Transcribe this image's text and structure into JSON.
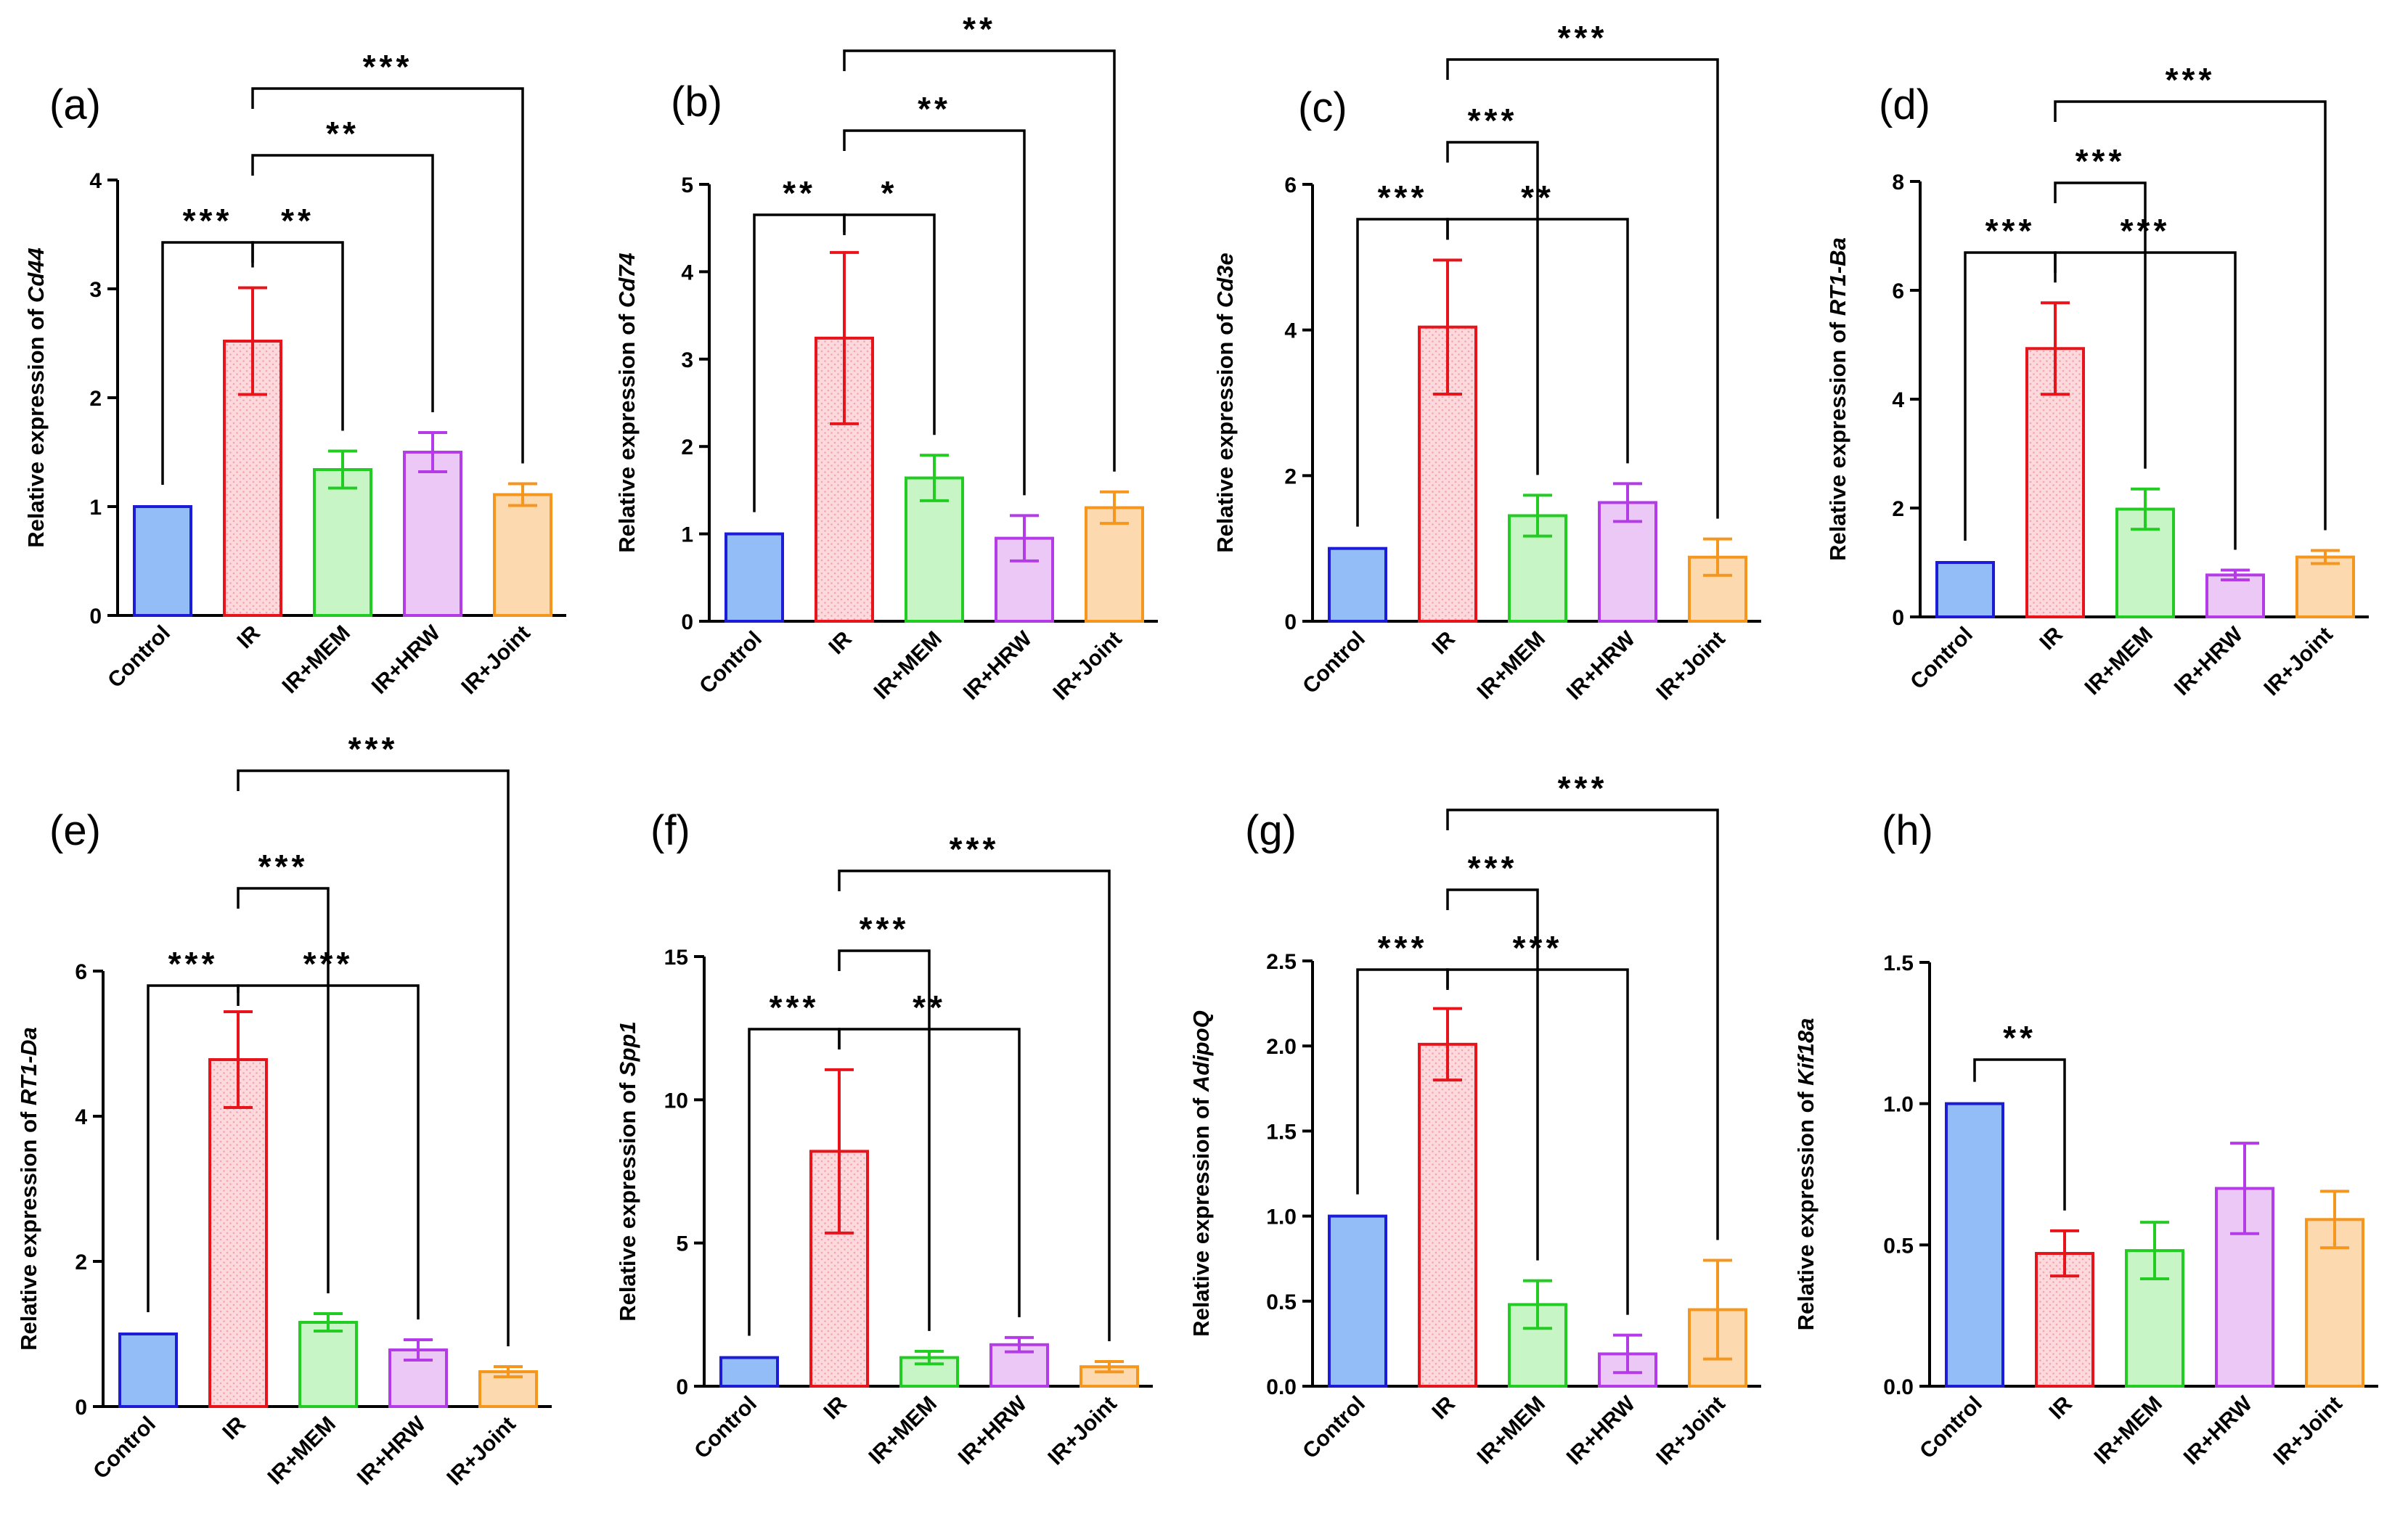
{
  "figure": {
    "groups": [
      "Control",
      "IR",
      "IR+MEM",
      "IR+HRW",
      "IR+Joint"
    ],
    "colors": {
      "stroke": [
        "#1c1cd6",
        "#e8141c",
        "#22cc22",
        "#b43ce6",
        "#f5961e"
      ],
      "fill": [
        "#93bdf7",
        "#fcd9dc",
        "#c8f5c6",
        "#ecc8f7",
        "#fdd9b0"
      ]
    }
  },
  "chart_data": [
    {
      "type": "bar",
      "panel": "(a)",
      "ylabel_prefix": "Relative expression of ",
      "gene": "Cd44",
      "ylim": [
        0,
        4
      ],
      "yticks": [
        "0",
        "1",
        "2",
        "3",
        "4"
      ],
      "categories": [
        "Control",
        "IR",
        "IR+MEM",
        "IR+HRW",
        "IR+Joint"
      ],
      "values": [
        1.0,
        2.52,
        1.34,
        1.5,
        1.11
      ],
      "errors": [
        0,
        0.49,
        0.17,
        0.18,
        0.1
      ],
      "significance": [
        {
          "from": 0,
          "to": 1,
          "label": "***"
        },
        {
          "from": 1,
          "to": 2,
          "label": "**"
        },
        {
          "from": 1,
          "to": 3,
          "label": "**"
        },
        {
          "from": 1,
          "to": 4,
          "label": "***"
        }
      ]
    },
    {
      "type": "bar",
      "panel": "(b)",
      "ylabel_prefix": "Relative expression of ",
      "gene": "Cd74",
      "ylim": [
        0,
        5
      ],
      "yticks": [
        "0",
        "1",
        "2",
        "3",
        "4",
        "5"
      ],
      "categories": [
        "Control",
        "IR",
        "IR+MEM",
        "IR+HRW",
        "IR+Joint"
      ],
      "values": [
        1.0,
        3.24,
        1.64,
        0.95,
        1.3
      ],
      "errors": [
        0,
        0.98,
        0.26,
        0.26,
        0.18
      ],
      "significance": [
        {
          "from": 0,
          "to": 1,
          "label": "**"
        },
        {
          "from": 1,
          "to": 2,
          "label": "*"
        },
        {
          "from": 1,
          "to": 3,
          "label": "**"
        },
        {
          "from": 1,
          "to": 4,
          "label": "**"
        }
      ]
    },
    {
      "type": "bar",
      "panel": "(c)",
      "ylabel_prefix": "Relative expression of ",
      "gene": "Cd3e",
      "ylim": [
        0,
        6
      ],
      "yticks": [
        "0",
        "2",
        "4",
        "6"
      ],
      "categories": [
        "Control",
        "IR",
        "IR+MEM",
        "IR+HRW",
        "IR+Joint"
      ],
      "values": [
        1.0,
        4.04,
        1.45,
        1.63,
        0.88
      ],
      "errors": [
        0,
        0.92,
        0.28,
        0.26,
        0.25
      ],
      "significance": [
        {
          "from": 0,
          "to": 1,
          "label": "***"
        },
        {
          "from": 1,
          "to": 2,
          "label": "***"
        },
        {
          "from": 1,
          "to": 3,
          "label": "**"
        },
        {
          "from": 1,
          "to": 4,
          "label": "***"
        }
      ]
    },
    {
      "type": "bar",
      "panel": "(d)",
      "ylabel_prefix": "Relative expression of ",
      "gene": "RT1-Ba",
      "ylim": [
        0,
        8
      ],
      "yticks": [
        "0",
        "2",
        "4",
        "6",
        "8"
      ],
      "categories": [
        "Control",
        "IR",
        "IR+MEM",
        "IR+HRW",
        "IR+Joint"
      ],
      "values": [
        1.0,
        4.93,
        1.98,
        0.77,
        1.1
      ],
      "errors": [
        0,
        0.84,
        0.37,
        0.09,
        0.12
      ],
      "significance": [
        {
          "from": 0,
          "to": 1,
          "label": "***"
        },
        {
          "from": 1,
          "to": 2,
          "label": "***"
        },
        {
          "from": 1,
          "to": 3,
          "label": "***"
        },
        {
          "from": 1,
          "to": 4,
          "label": "***"
        }
      ]
    },
    {
      "type": "bar",
      "panel": "(e)",
      "ylabel_prefix": "Relative expression of ",
      "gene": "RT1-Da",
      "ylim": [
        0,
        6
      ],
      "yticks": [
        "0",
        "2",
        "4",
        "6"
      ],
      "categories": [
        "Control",
        "IR",
        "IR+MEM",
        "IR+HRW",
        "IR+Joint"
      ],
      "values": [
        1.0,
        4.78,
        1.16,
        0.78,
        0.48
      ],
      "errors": [
        0,
        0.66,
        0.12,
        0.14,
        0.07
      ],
      "significance": [
        {
          "from": 0,
          "to": 1,
          "label": "***"
        },
        {
          "from": 1,
          "to": 2,
          "label": "***"
        },
        {
          "from": 1,
          "to": 3,
          "label": "***"
        },
        {
          "from": 1,
          "to": 4,
          "label": "***"
        }
      ]
    },
    {
      "type": "bar",
      "panel": "(f)",
      "ylabel_prefix": "Relative expression of ",
      "gene": "Spp1",
      "ylim": [
        0,
        15
      ],
      "yticks": [
        "0",
        "5",
        "10",
        "15"
      ],
      "categories": [
        "Control",
        "IR",
        "IR+MEM",
        "IR+HRW",
        "IR+Joint"
      ],
      "values": [
        1.0,
        8.2,
        1.0,
        1.45,
        0.68
      ],
      "errors": [
        0,
        2.85,
        0.22,
        0.25,
        0.18
      ],
      "significance": [
        {
          "from": 0,
          "to": 1,
          "label": "***"
        },
        {
          "from": 1,
          "to": 2,
          "label": "***"
        },
        {
          "from": 1,
          "to": 3,
          "label": "**"
        },
        {
          "from": 1,
          "to": 4,
          "label": "***"
        }
      ]
    },
    {
      "type": "bar",
      "panel": "(g)",
      "ylabel_prefix": "Relative expression of ",
      "gene": "AdipoQ",
      "ylim": [
        0,
        2.5
      ],
      "yticks": [
        "0.0",
        "0.5",
        "1.0",
        "1.5",
        "2.0",
        "2.5"
      ],
      "categories": [
        "Control",
        "IR",
        "IR+MEM",
        "IR+HRW",
        "IR+Joint"
      ],
      "values": [
        1.0,
        2.01,
        0.48,
        0.19,
        0.45
      ],
      "errors": [
        0,
        0.21,
        0.14,
        0.11,
        0.29
      ],
      "significance": [
        {
          "from": 0,
          "to": 1,
          "label": "***"
        },
        {
          "from": 1,
          "to": 2,
          "label": "***"
        },
        {
          "from": 1,
          "to": 3,
          "label": "***"
        },
        {
          "from": 1,
          "to": 4,
          "label": "***"
        }
      ]
    },
    {
      "type": "bar",
      "panel": "(h)",
      "ylabel_prefix": "Relative expression of ",
      "gene": "Kif18a",
      "ylim": [
        0,
        1.5
      ],
      "yticks": [
        "0.0",
        "0.5",
        "1.0",
        "1.5"
      ],
      "categories": [
        "Control",
        "IR",
        "IR+MEM",
        "IR+HRW",
        "IR+Joint"
      ],
      "values": [
        1.0,
        0.47,
        0.48,
        0.7,
        0.59
      ],
      "errors": [
        0,
        0.08,
        0.1,
        0.16,
        0.1
      ],
      "significance": [
        {
          "from": 0,
          "to": 1,
          "label": "**"
        }
      ]
    }
  ]
}
